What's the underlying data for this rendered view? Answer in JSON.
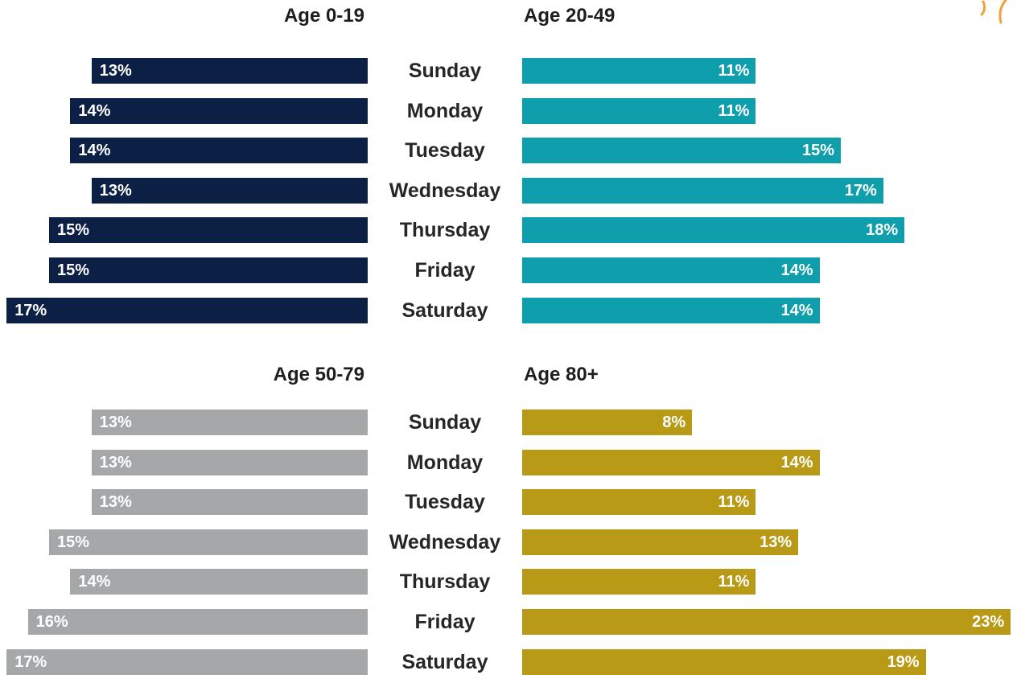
{
  "days": [
    "Sunday",
    "Monday",
    "Tuesday",
    "Wednesday",
    "Thursday",
    "Friday",
    "Saturday"
  ],
  "colors": {
    "age_0_19": "#0c1f44",
    "age_20_49": "#0f9eac",
    "age_50_79": "#a5a7a9",
    "age_80_plus": "#b89a17",
    "decoration": "#f2a13a"
  },
  "chart_data": [
    {
      "type": "bar",
      "title": "Age 0-19",
      "categories": [
        "Sunday",
        "Monday",
        "Tuesday",
        "Wednesday",
        "Thursday",
        "Friday",
        "Saturday"
      ],
      "values": [
        13,
        14,
        14,
        13,
        15,
        15,
        17
      ],
      "labels": [
        "13%",
        "14%",
        "14%",
        "13%",
        "15%",
        "15%",
        "17%"
      ],
      "unit": "%",
      "orientation": "horizontal-leftward",
      "color": "#0c1f44"
    },
    {
      "type": "bar",
      "title": "Age 20-49",
      "categories": [
        "Sunday",
        "Monday",
        "Tuesday",
        "Wednesday",
        "Thursday",
        "Friday",
        "Saturday"
      ],
      "values": [
        11,
        11,
        15,
        17,
        18,
        14,
        14
      ],
      "labels": [
        "11%",
        "11%",
        "15%",
        "17%",
        "18%",
        "14%",
        "14%"
      ],
      "unit": "%",
      "orientation": "horizontal",
      "color": "#0f9eac"
    },
    {
      "type": "bar",
      "title": "Age 50-79",
      "categories": [
        "Sunday",
        "Monday",
        "Tuesday",
        "Wednesday",
        "Thursday",
        "Friday",
        "Saturday"
      ],
      "values": [
        13,
        13,
        13,
        15,
        14,
        16,
        17
      ],
      "labels": [
        "13%",
        "13%",
        "13%",
        "15%",
        "14%",
        "16%",
        "17%"
      ],
      "unit": "%",
      "orientation": "horizontal-leftward",
      "color": "#a5a7a9"
    },
    {
      "type": "bar",
      "title": "Age 80+",
      "categories": [
        "Sunday",
        "Monday",
        "Tuesday",
        "Wednesday",
        "Thursday",
        "Friday",
        "Saturday"
      ],
      "values": [
        8,
        14,
        11,
        13,
        11,
        23,
        19
      ],
      "labels": [
        "8%",
        "14%",
        "11%",
        "13%",
        "11%",
        "23%",
        "19%"
      ],
      "unit": "%",
      "orientation": "horizontal",
      "color": "#b89a17"
    }
  ]
}
